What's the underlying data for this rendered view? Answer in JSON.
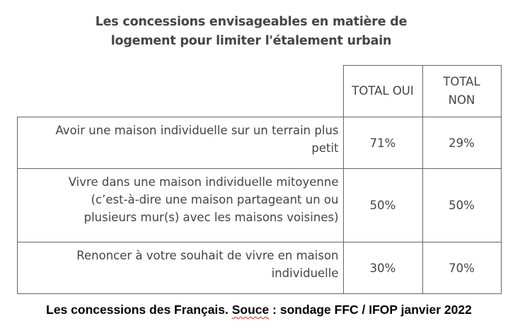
{
  "chart_data": {
    "type": "table",
    "title_lines": [
      "Les concessions envisageables en matière de",
      "logement pour limiter l'étalement urbain"
    ],
    "columns": [
      "TOTAL OUI",
      "TOTAL NON"
    ],
    "rows": [
      {
        "label_lines": [
          "Avoir une maison individuelle sur un terrain plus",
          "petit"
        ],
        "values": [
          "71%",
          "29%"
        ]
      },
      {
        "label_lines": [
          "Vivre dans une maison individuelle mitoyenne",
          "(c’est-à-dire une maison partageant un ou",
          "plusieurs mur(s) avec les maisons voisines)"
        ],
        "values": [
          "50%",
          "50%"
        ]
      },
      {
        "label_lines": [
          "Renoncer à votre souhait de vivre en maison",
          "individuelle"
        ],
        "values": [
          "30%",
          "70%"
        ]
      }
    ]
  },
  "caption": {
    "before": "Les concessions des Français. ",
    "misspelled": "Souce",
    "after": " : sondage FFC / IFOP janvier 2022",
    "spellcheck_color": "#d62a2a"
  }
}
